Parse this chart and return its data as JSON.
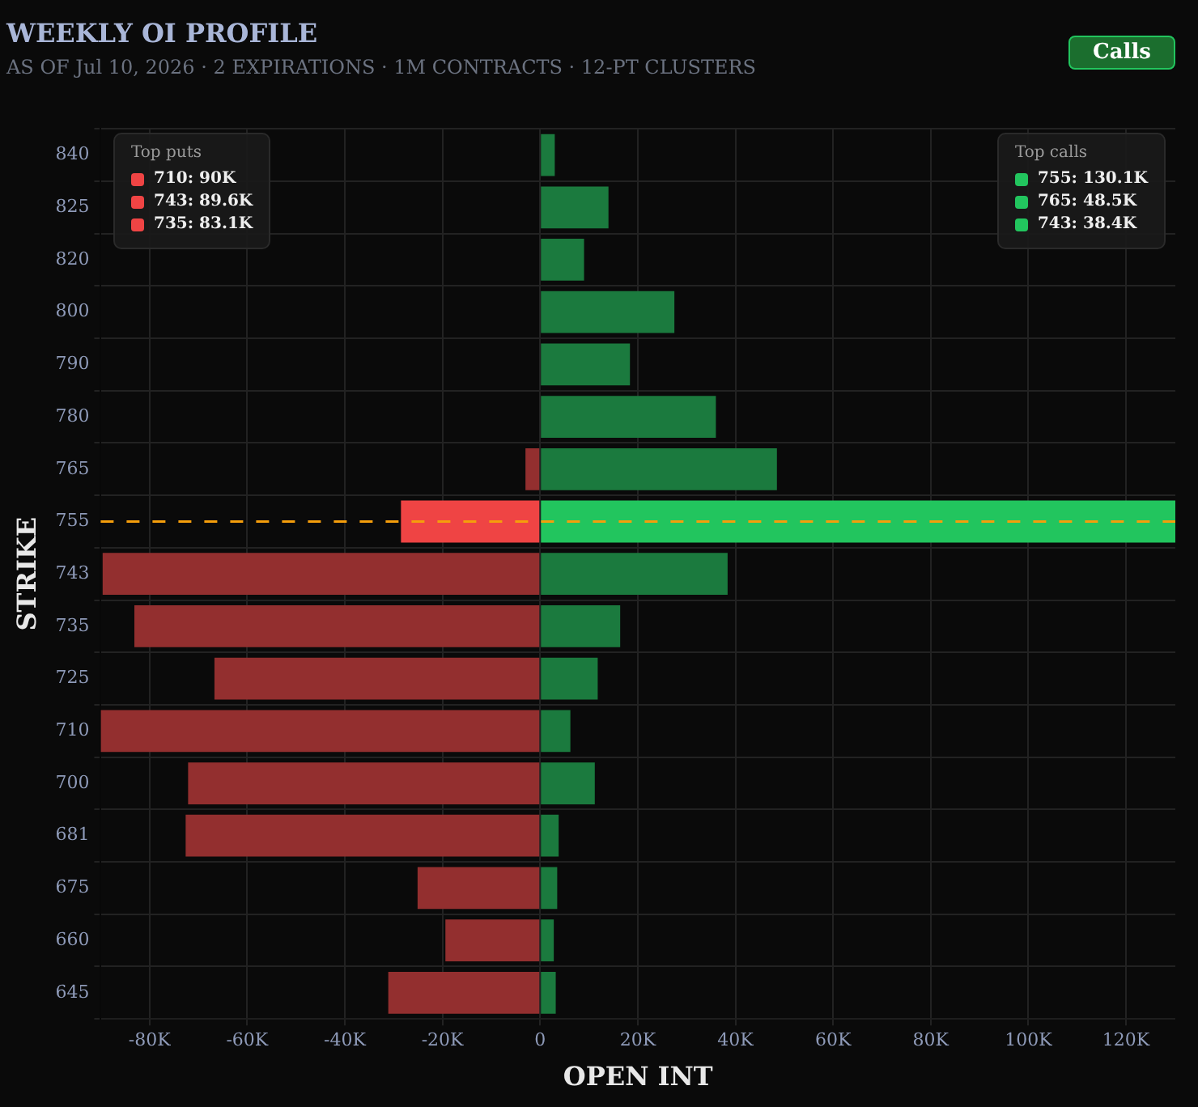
{
  "chart_data": {
    "type": "bar",
    "orientation": "horizontal",
    "stacked": true,
    "title": "WEEKLY OI PROFILE",
    "subtitle": "AS OF Jul 10, 2026 · 2 EXPIRATIONS · 1M CONTRACTS · 12-PT CLUSTERS",
    "xlabel": "OPEN INT",
    "ylabel": "STRIKE",
    "categories": [
      "840",
      "825",
      "820",
      "800",
      "790",
      "780",
      "765",
      "755",
      "743",
      "735",
      "725",
      "710",
      "700",
      "681",
      "675",
      "660",
      "645"
    ],
    "series": [
      {
        "colors": [
          "#932f2f",
          "#932f2f",
          "#932f2f",
          "#932f2f",
          "#932f2f",
          "#932f2f",
          "#932f2f",
          "#ef4444",
          "#932f2f",
          "#932f2f",
          "#932f2f",
          "#932f2f",
          "#932f2f",
          "#932f2f",
          "#932f2f",
          "#932f2f",
          "#932f2f"
        ],
        "values": [
          0,
          0,
          0,
          0,
          0,
          0,
          -3000,
          -28500,
          -89600,
          -83100,
          -66700,
          -90000,
          -72100,
          -72600,
          -25100,
          -19400,
          -31100
        ]
      },
      {
        "colors": [
          "#1b7a3e",
          "#1b7a3e",
          "#1b7a3e",
          "#1b7a3e",
          "#1b7a3e",
          "#1b7a3e",
          "#1b7a3e",
          "#22c55e",
          "#1b7a3e",
          "#1b7a3e",
          "#1b7a3e",
          "#1b7a3e",
          "#1b7a3e",
          "#1b7a3e",
          "#1b7a3e",
          "#1b7a3e",
          "#1b7a3e"
        ],
        "values": [
          3000,
          14000,
          9000,
          27500,
          18400,
          36000,
          48500,
          130100,
          38400,
          16400,
          11800,
          6200,
          11200,
          3800,
          3500,
          2800,
          3200
        ]
      }
    ],
    "xlim": [
      -90000,
      130100
    ],
    "xticks": [
      {
        "value": -80000,
        "label": "-80K"
      },
      {
        "value": -60000,
        "label": "-60K"
      },
      {
        "value": -40000,
        "label": "-40K"
      },
      {
        "value": -20000,
        "label": "-20K"
      },
      0,
      {
        "value": 20000,
        "label": "20K"
      },
      {
        "value": 40000,
        "label": "40K"
      },
      {
        "value": 60000,
        "label": "60K"
      },
      {
        "value": 80000,
        "label": "80K"
      },
      {
        "value": 100000,
        "label": "100K"
      },
      {
        "value": 120000,
        "label": "120K"
      }
    ],
    "grid": true,
    "legend": false,
    "ref_lines": [
      {
        "axis": "y",
        "value": "755",
        "color": "#f59e0b",
        "line_style": "dashed"
      }
    ],
    "annotations": [
      "Calls",
      "Top puts",
      "710: 90K",
      "743: 89.6K",
      "735: 83.1K",
      "Top calls",
      "755: 130.1K",
      "765: 48.5K",
      "743: 38.4K"
    ]
  }
}
